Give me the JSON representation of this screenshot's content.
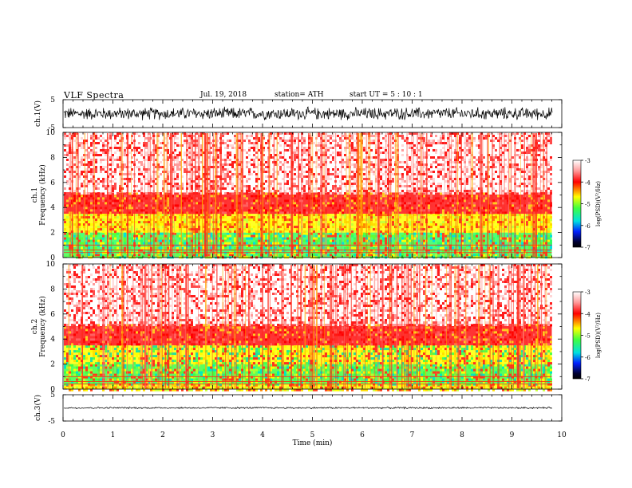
{
  "header": {
    "title": "VLF  Spectra",
    "date": "Jul.  19, 2018",
    "station": "station= ATH",
    "start": "start  UT  =    5  : 10 : 1"
  },
  "chart_data": [
    {
      "type": "line",
      "panel": "ch1-waveform",
      "ylabel": "ch.1(V)",
      "ylim": [
        -5,
        5
      ],
      "yticks": [
        "5",
        "-5"
      ],
      "xlim": [
        0,
        10
      ],
      "amplitude_approx": 2
    },
    {
      "type": "heatmap",
      "panel": "ch1-spectrogram",
      "ylabel": "ch.1\nFrequency  (kHz)",
      "ylabel_line1": "ch.1",
      "ylabel_line2": "Frequency  (kHz)",
      "ylim": [
        0,
        10
      ],
      "yticks": [
        "0",
        "2",
        "4",
        "6",
        "8",
        "10"
      ],
      "xlim": [
        0,
        10
      ],
      "data_end_min": 9.8,
      "colorbar": {
        "label": "log(PSD)(V²/Hz)",
        "range": [
          -7,
          -3
        ],
        "ticks": [
          "-3",
          "-4",
          "-5",
          "-6",
          "-7"
        ]
      },
      "bands": [
        {
          "fmin": 0.0,
          "fmax": 0.3,
          "level": "green-yellow"
        },
        {
          "fmin": 0.3,
          "fmax": 2.0,
          "level": "green-cyan"
        },
        {
          "fmin": 2.0,
          "fmax": 3.5,
          "level": "yellow"
        },
        {
          "fmin": 3.5,
          "fmax": 5.2,
          "level": "red"
        },
        {
          "fmin": 5.2,
          "fmax": 10.0,
          "level": "red-white"
        }
      ]
    },
    {
      "type": "heatmap",
      "panel": "ch2-spectrogram",
      "ylabel": "ch.2\nFrequency  (kHz)",
      "ylabel_line1": "ch.2",
      "ylabel_line2": "Frequency  (kHz)",
      "ylim": [
        0,
        10
      ],
      "yticks": [
        "0",
        "2",
        "4",
        "6",
        "8",
        "10"
      ],
      "xlim": [
        0,
        10
      ],
      "data_end_min": 9.8,
      "colorbar": {
        "label": "log(PSD)(V²/Hz)",
        "range": [
          -7,
          -3
        ],
        "ticks": [
          "-3",
          "-4",
          "-5",
          "-6",
          "-7"
        ]
      },
      "bands": [
        {
          "fmin": 0.0,
          "fmax": 0.4,
          "level": "yellow"
        },
        {
          "fmin": 0.4,
          "fmax": 2.0,
          "level": "green-yellow"
        },
        {
          "fmin": 2.0,
          "fmax": 3.5,
          "level": "yellow-green"
        },
        {
          "fmin": 3.5,
          "fmax": 5.2,
          "level": "red"
        },
        {
          "fmin": 5.2,
          "fmax": 10.0,
          "level": "red-white"
        }
      ]
    },
    {
      "type": "line",
      "panel": "ch3-waveform",
      "ylabel": "ch.3(V)",
      "ylim": [
        -5,
        5
      ],
      "yticks": [
        "5",
        "-5"
      ],
      "xlim": [
        0,
        10
      ],
      "amplitude_approx": 0.3,
      "xlabel": "Time  (min)",
      "xticks": [
        "0",
        "1",
        "2",
        "3",
        "4",
        "5",
        "6",
        "7",
        "8",
        "9",
        "10"
      ]
    }
  ]
}
